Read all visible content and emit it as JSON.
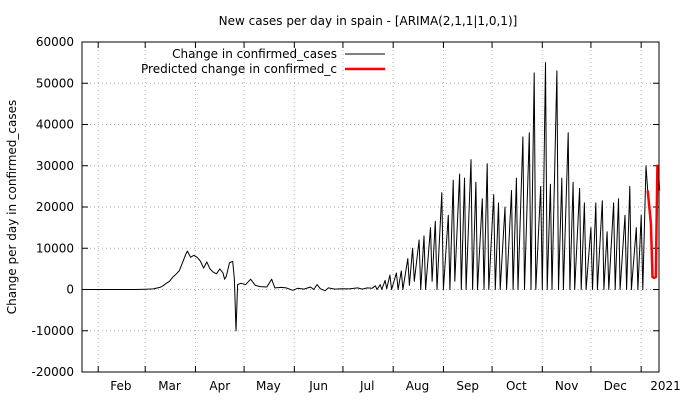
{
  "chart_data": {
    "type": "line",
    "title": "New cases per day in spain -  [ARIMA(2,1,1|1,0,1)]",
    "xlabel": "",
    "ylabel": "Change per day in confirmed_cases",
    "ylim": [
      -20000,
      60000
    ],
    "yticks": [
      -20000,
      -10000,
      0,
      10000,
      20000,
      30000,
      40000,
      50000,
      60000
    ],
    "x_tick_labels": [
      "Feb",
      "Mar",
      "Apr",
      "May",
      "Jun",
      "Jul",
      "Aug",
      "Sep",
      "Oct",
      "Nov",
      "Dec",
      "2021"
    ],
    "x_tick_dates": [
      "2020-02-01",
      "2020-03-01",
      "2020-04-01",
      "2020-05-01",
      "2020-06-01",
      "2020-07-01",
      "2020-08-01",
      "2020-09-01",
      "2020-10-01",
      "2020-11-01",
      "2020-12-01",
      "2021-01-01"
    ],
    "xlim": [
      "2020-01-22",
      "2021-01-12"
    ],
    "grid": true,
    "legend_position": "top-left",
    "series": [
      {
        "name": "Change in confirmed_cases",
        "color": "#000000",
        "points": [
          [
            "2020-01-22",
            0
          ],
          [
            "2020-02-24",
            0
          ],
          [
            "2020-03-01",
            80
          ],
          [
            "2020-03-06",
            150
          ],
          [
            "2020-03-10",
            500
          ],
          [
            "2020-03-12",
            900
          ],
          [
            "2020-03-14",
            1500
          ],
          [
            "2020-03-16",
            2000
          ],
          [
            "2020-03-18",
            3000
          ],
          [
            "2020-03-20",
            3700
          ],
          [
            "2020-03-22",
            4500
          ],
          [
            "2020-03-24",
            6500
          ],
          [
            "2020-03-26",
            8500
          ],
          [
            "2020-03-27",
            9300
          ],
          [
            "2020-03-29",
            7800
          ],
          [
            "2020-03-31",
            8300
          ],
          [
            "2020-04-02",
            7800
          ],
          [
            "2020-04-04",
            6900
          ],
          [
            "2020-04-06",
            5200
          ],
          [
            "2020-04-08",
            6700
          ],
          [
            "2020-04-10",
            5000
          ],
          [
            "2020-04-12",
            4200
          ],
          [
            "2020-04-14",
            3800
          ],
          [
            "2020-04-16",
            5000
          ],
          [
            "2020-04-18",
            4000
          ],
          [
            "2020-04-19",
            2500
          ],
          [
            "2020-04-20",
            3200
          ],
          [
            "2020-04-22",
            6500
          ],
          [
            "2020-04-24",
            6800
          ],
          [
            "2020-04-25",
            2500
          ],
          [
            "2020-04-26",
            -10000
          ],
          [
            "2020-04-27",
            1200
          ],
          [
            "2020-04-29",
            1500
          ],
          [
            "2020-05-02",
            1200
          ],
          [
            "2020-05-05",
            2500
          ],
          [
            "2020-05-08",
            1000
          ],
          [
            "2020-05-11",
            700
          ],
          [
            "2020-05-15",
            600
          ],
          [
            "2020-05-18",
            2500
          ],
          [
            "2020-05-20",
            400
          ],
          [
            "2020-05-24",
            500
          ],
          [
            "2020-05-27",
            400
          ],
          [
            "2020-05-31",
            -200
          ],
          [
            "2020-06-03",
            300
          ],
          [
            "2020-06-07",
            100
          ],
          [
            "2020-06-11",
            600
          ],
          [
            "2020-06-13",
            0
          ],
          [
            "2020-06-15",
            1200
          ],
          [
            "2020-06-17",
            200
          ],
          [
            "2020-06-20",
            -300
          ],
          [
            "2020-06-22",
            400
          ],
          [
            "2020-06-26",
            100
          ],
          [
            "2020-06-30",
            200
          ],
          [
            "2020-07-05",
            150
          ],
          [
            "2020-07-10",
            400
          ],
          [
            "2020-07-13",
            100
          ],
          [
            "2020-07-16",
            400
          ],
          [
            "2020-07-19",
            300
          ],
          [
            "2020-07-21",
            900
          ],
          [
            "2020-07-22",
            0
          ],
          [
            "2020-07-24",
            1200
          ],
          [
            "2020-07-25",
            0
          ],
          [
            "2020-07-27",
            2200
          ],
          [
            "2020-07-28",
            200
          ],
          [
            "2020-07-30",
            3500
          ],
          [
            "2020-07-31",
            0
          ],
          [
            "2020-08-03",
            4000
          ],
          [
            "2020-08-04",
            0
          ],
          [
            "2020-08-06",
            4500
          ],
          [
            "2020-08-07",
            0
          ],
          [
            "2020-08-10",
            7500
          ],
          [
            "2020-08-11",
            1000
          ],
          [
            "2020-08-13",
            10000
          ],
          [
            "2020-08-14",
            2000
          ],
          [
            "2020-08-17",
            12000
          ],
          [
            "2020-08-18",
            0
          ],
          [
            "2020-08-20",
            13000
          ],
          [
            "2020-08-21",
            0
          ],
          [
            "2020-08-24",
            15000
          ],
          [
            "2020-08-25",
            2000
          ],
          [
            "2020-08-27",
            16500
          ],
          [
            "2020-08-28",
            0
          ],
          [
            "2020-08-31",
            23500
          ],
          [
            "2020-09-01",
            0
          ],
          [
            "2020-09-04",
            18000
          ],
          [
            "2020-09-05",
            0
          ],
          [
            "2020-09-07",
            26500
          ],
          [
            "2020-09-08",
            2000
          ],
          [
            "2020-09-11",
            28000
          ],
          [
            "2020-09-12",
            0
          ],
          [
            "2020-09-14",
            27000
          ],
          [
            "2020-09-15",
            0
          ],
          [
            "2020-09-18",
            31500
          ],
          [
            "2020-09-19",
            0
          ],
          [
            "2020-09-21",
            26000
          ],
          [
            "2020-09-22",
            0
          ],
          [
            "2020-09-25",
            22000
          ],
          [
            "2020-09-26",
            0
          ],
          [
            "2020-09-28",
            30500
          ],
          [
            "2020-09-29",
            0
          ],
          [
            "2020-10-02",
            23000
          ],
          [
            "2020-10-03",
            0
          ],
          [
            "2020-10-05",
            21000
          ],
          [
            "2020-10-06",
            0
          ],
          [
            "2020-10-09",
            20000
          ],
          [
            "2020-10-10",
            0
          ],
          [
            "2020-10-13",
            24000
          ],
          [
            "2020-10-14",
            0
          ],
          [
            "2020-10-16",
            27000
          ],
          [
            "2020-10-17",
            0
          ],
          [
            "2020-10-20",
            37000
          ],
          [
            "2020-10-21",
            0
          ],
          [
            "2020-10-24",
            38000
          ],
          [
            "2020-10-25",
            0
          ],
          [
            "2020-10-27",
            52500
          ],
          [
            "2020-10-28",
            0
          ],
          [
            "2020-10-31",
            25000
          ],
          [
            "2020-11-01",
            0
          ],
          [
            "2020-11-03",
            55000
          ],
          [
            "2020-11-04",
            0
          ],
          [
            "2020-11-06",
            25500
          ],
          [
            "2020-11-07",
            0
          ],
          [
            "2020-11-10",
            53000
          ],
          [
            "2020-11-11",
            0
          ],
          [
            "2020-11-13",
            27000
          ],
          [
            "2020-11-14",
            0
          ],
          [
            "2020-11-17",
            38000
          ],
          [
            "2020-11-18",
            0
          ],
          [
            "2020-11-20",
            26000
          ],
          [
            "2020-11-21",
            0
          ],
          [
            "2020-11-24",
            24500
          ],
          [
            "2020-11-25",
            0
          ],
          [
            "2020-11-27",
            21000
          ],
          [
            "2020-11-28",
            0
          ],
          [
            "2020-12-01",
            15000
          ],
          [
            "2020-12-02",
            0
          ],
          [
            "2020-12-04",
            21000
          ],
          [
            "2020-12-05",
            0
          ],
          [
            "2020-12-08",
            21500
          ],
          [
            "2020-12-09",
            0
          ],
          [
            "2020-12-11",
            14000
          ],
          [
            "2020-12-12",
            0
          ],
          [
            "2020-12-15",
            21000
          ],
          [
            "2020-12-16",
            0
          ],
          [
            "2020-12-18",
            22000
          ],
          [
            "2020-12-19",
            0
          ],
          [
            "2020-12-22",
            18000
          ],
          [
            "2020-12-23",
            0
          ],
          [
            "2020-12-25",
            25000
          ],
          [
            "2020-12-26",
            0
          ],
          [
            "2020-12-29",
            15000
          ],
          [
            "2020-12-30",
            0
          ],
          [
            "2021-01-01",
            18000
          ],
          [
            "2021-01-02",
            0
          ],
          [
            "2021-01-04",
            30000
          ],
          [
            "2021-01-05",
            24000
          ]
        ]
      },
      {
        "name": "Predicted change in confirmed_c",
        "color": "#ff0000",
        "points": [
          [
            "2021-01-05",
            24000
          ],
          [
            "2021-01-06",
            20000
          ],
          [
            "2021-01-07",
            16000
          ],
          [
            "2021-01-08",
            3000
          ],
          [
            "2021-01-09",
            2800
          ],
          [
            "2021-01-10",
            3000
          ],
          [
            "2021-01-11",
            30000
          ],
          [
            "2021-01-12",
            24000
          ]
        ]
      }
    ]
  }
}
